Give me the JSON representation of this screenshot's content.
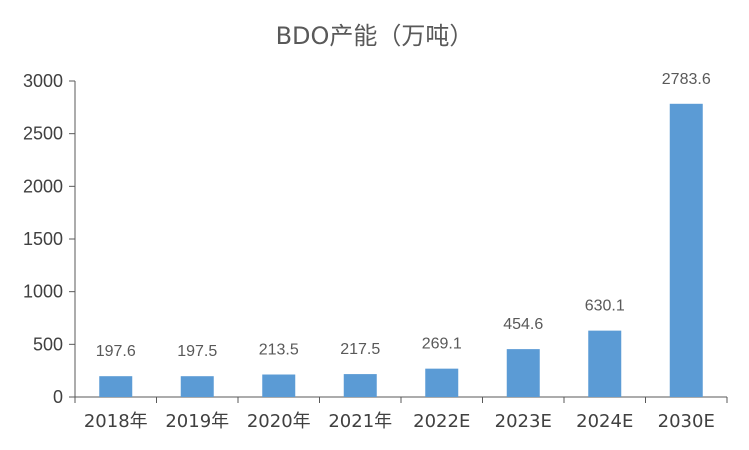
{
  "chart_data": {
    "type": "bar",
    "title": "BDO产能（万吨）",
    "categories": [
      "2018年",
      "2019年",
      "2020年",
      "2021年",
      "2022E",
      "2023E",
      "2024E",
      "2030E"
    ],
    "values": [
      197.6,
      197.5,
      213.5,
      217.5,
      269.1,
      454.6,
      630.1,
      2783.6
    ],
    "data_labels": [
      "197.6",
      "197.5",
      "213.5",
      "217.5",
      "269.1",
      "454.6",
      "630.1",
      "2783.6"
    ],
    "ylim": [
      0,
      3000
    ],
    "yticks": [
      0,
      500,
      1000,
      1500,
      2000,
      2500,
      3000
    ],
    "ytick_labels": [
      "0",
      "500",
      "1000",
      "1500",
      "2000",
      "2500",
      "3000"
    ],
    "bar_color": "#5B9BD5",
    "grid": false,
    "legend": "none"
  }
}
